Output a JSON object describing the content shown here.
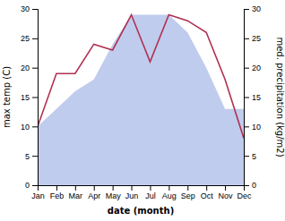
{
  "chart_data": {
    "type": "line",
    "xlabel": "date (month)",
    "ylabel": "max temp (C)",
    "y2label": "med. precipitation (kg/m2)",
    "categories": [
      "Jan",
      "Feb",
      "Mar",
      "Apr",
      "May",
      "Jun",
      "Jul",
      "Aug",
      "Sep",
      "Oct",
      "Nov",
      "Dec"
    ],
    "series": [
      {
        "type": "area",
        "axis": "y2",
        "color": "#c0ccee",
        "values": [
          10,
          13,
          16,
          18,
          24,
          29,
          29,
          29,
          26,
          20,
          13,
          13
        ]
      },
      {
        "type": "line",
        "color": "#b03050",
        "values": [
          10,
          19,
          19,
          24,
          23,
          29,
          21,
          29,
          28,
          26,
          18,
          8
        ]
      }
    ],
    "ylim": [
      0,
      30
    ],
    "yticks": [
      0,
      5,
      10,
      15,
      20,
      25,
      30
    ],
    "y2lim": [
      0,
      30
    ],
    "y2ticks": [
      0,
      5,
      10,
      15,
      20,
      25,
      30
    ],
    "grid": false
  }
}
